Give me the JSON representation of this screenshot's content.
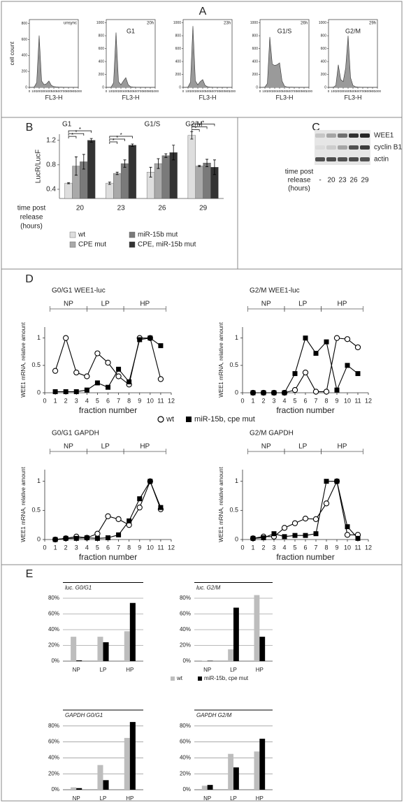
{
  "panel_labels": [
    "A",
    "B",
    "C",
    "D",
    "E"
  ],
  "blot": {
    "rows": [
      "WEE1",
      "cyclin B1",
      "actin"
    ],
    "xlabel": [
      "time post",
      "release",
      "(hours)"
    ],
    "lanes": [
      "-",
      "20",
      "23",
      "26",
      "29"
    ]
  },
  "chart_data": [
    {
      "type": "area",
      "annotation": "unsync",
      "ylabel": "cell count",
      "xlabel": "FL3-H",
      "color": "#9a9a9a",
      "x": [
        0,
        50,
        100,
        150,
        200,
        250,
        300,
        350,
        400,
        450,
        500,
        550,
        600,
        650,
        700,
        750,
        800,
        850,
        900,
        950,
        1000
      ],
      "values": [
        0,
        0,
        5,
        60,
        650,
        80,
        35,
        45,
        80,
        25,
        10,
        6,
        4,
        3,
        2,
        2,
        1,
        1,
        1,
        0,
        0
      ],
      "xlim": [
        0,
        1000
      ],
      "xticks": [
        0,
        100,
        200,
        300,
        400,
        500,
        600,
        700,
        800,
        900,
        1000
      ],
      "ylim": [
        0,
        850
      ],
      "yticks": [
        0,
        200,
        400,
        600,
        800
      ]
    },
    {
      "type": "area",
      "annotation": "20h",
      "subtitle": "G1",
      "xlabel": "FL3-H",
      "color": "#9a9a9a",
      "x": [
        0,
        50,
        100,
        150,
        200,
        250,
        300,
        350,
        400,
        450,
        500,
        550,
        600,
        650,
        700,
        750,
        800,
        850,
        900,
        950,
        1000
      ],
      "values": [
        0,
        0,
        5,
        70,
        850,
        90,
        40,
        100,
        150,
        40,
        10,
        5,
        3,
        2,
        2,
        1,
        1,
        1,
        0,
        0,
        0
      ],
      "xlim": [
        0,
        1000
      ],
      "xticks": [
        0,
        100,
        200,
        300,
        400,
        500,
        600,
        700,
        800,
        900,
        1000
      ],
      "ylim": [
        0,
        1050
      ],
      "yticks": [
        0,
        200,
        400,
        600,
        800,
        1000
      ]
    },
    {
      "type": "area",
      "annotation": "23h",
      "xlabel": "FL3-H",
      "color": "#9a9a9a",
      "x": [
        0,
        50,
        100,
        150,
        200,
        250,
        300,
        350,
        400,
        450,
        500,
        550,
        600,
        650,
        700,
        750,
        800,
        850,
        900,
        950,
        1000
      ],
      "values": [
        0,
        0,
        5,
        80,
        950,
        100,
        40,
        90,
        120,
        30,
        10,
        5,
        3,
        2,
        2,
        1,
        1,
        1,
        0,
        0,
        0
      ],
      "xlim": [
        0,
        1000
      ],
      "xticks": [
        0,
        100,
        200,
        300,
        400,
        500,
        600,
        700,
        800,
        900,
        1000
      ],
      "ylim": [
        0,
        1050
      ],
      "yticks": [
        0,
        200,
        400,
        600,
        800,
        1000
      ]
    },
    {
      "type": "area",
      "annotation": "26h",
      "subtitle": "G1/S",
      "xlabel": "FL3-H",
      "color": "#9a9a9a",
      "x": [
        0,
        50,
        100,
        150,
        200,
        250,
        300,
        350,
        400,
        450,
        500,
        550,
        600,
        650,
        700,
        750,
        800,
        850,
        900,
        950,
        1000
      ],
      "values": [
        0,
        0,
        5,
        60,
        780,
        360,
        340,
        350,
        380,
        100,
        20,
        8,
        4,
        3,
        2,
        2,
        1,
        1,
        0,
        0,
        0
      ],
      "xlim": [
        0,
        1000
      ],
      "xticks": [
        0,
        100,
        200,
        300,
        400,
        500,
        600,
        700,
        800,
        900,
        1000
      ],
      "ylim": [
        0,
        1050
      ],
      "yticks": [
        0,
        200,
        400,
        600,
        800,
        1000
      ]
    },
    {
      "type": "area",
      "annotation": "29h",
      "subtitle": "G2/M",
      "xlabel": "FL3-H",
      "color": "#9a9a9a",
      "x": [
        0,
        50,
        100,
        150,
        200,
        250,
        300,
        350,
        400,
        450,
        500,
        550,
        600,
        650,
        700,
        750,
        800,
        850,
        900,
        950,
        1000
      ],
      "values": [
        0,
        0,
        3,
        30,
        350,
        120,
        90,
        300,
        800,
        150,
        30,
        10,
        5,
        3,
        2,
        2,
        1,
        1,
        0,
        0,
        0
      ],
      "xlim": [
        0,
        1000
      ],
      "xticks": [
        0,
        100,
        200,
        300,
        400,
        500,
        600,
        700,
        800,
        900,
        1000
      ],
      "ylim": [
        0,
        1050
      ],
      "yticks": [
        0,
        200,
        400,
        600,
        800,
        1000
      ]
    },
    {
      "type": "bar",
      "ylabel": "LucR/LucF",
      "xlabel": [
        "time post",
        "release",
        "(hours)"
      ],
      "categories": [
        "20",
        "23",
        "26",
        "29"
      ],
      "phase_labels": [
        "G1",
        null,
        "G1/S",
        "G2/M"
      ],
      "significance": [
        "*",
        "*",
        null,
        "*"
      ],
      "ylim": [
        0.25,
        1.3
      ],
      "yticks": [
        0.4,
        0.8,
        1.2
      ],
      "series": [
        {
          "name": "wt",
          "color": "#dedede",
          "values": [
            0.5,
            0.5,
            0.68,
            1.28
          ],
          "errors": [
            0.01,
            0.02,
            0.08,
            0.06
          ]
        },
        {
          "name": "CPE mut",
          "color": "#a9a9a9",
          "values": [
            0.78,
            0.66,
            0.82,
            0.78
          ],
          "errors": [
            0.15,
            0.02,
            0.08,
            0.01
          ]
        },
        {
          "name": "miR-15b mut",
          "color": "#7a7a7a",
          "values": [
            0.85,
            0.82,
            0.95,
            0.83
          ],
          "errors": [
            0.12,
            0.06,
            0.03,
            0.06
          ]
        },
        {
          "name": "CPE, miR-15b mut",
          "color": "#333333",
          "values": [
            1.2,
            1.12,
            1.0,
            0.76
          ],
          "errors": [
            0.03,
            0.02,
            0.12,
            0.12
          ]
        }
      ]
    },
    {
      "type": "line",
      "title": "G0/G1 WEE1-luc",
      "xlabel": "fraction number",
      "ylabel": "WEE1 mRNA, relative amount",
      "regions": [
        {
          "label": "NP",
          "range": [
            0.5,
            4
          ]
        },
        {
          "label": "LP",
          "range": [
            4,
            7.5
          ]
        },
        {
          "label": "HP",
          "range": [
            7.5,
            11.5
          ]
        }
      ],
      "x": [
        1,
        2,
        3,
        4,
        5,
        6,
        7,
        8,
        9,
        10,
        11
      ],
      "xlim": [
        0,
        12
      ],
      "xticks": [
        0,
        1,
        2,
        3,
        4,
        5,
        6,
        7,
        8,
        9,
        10,
        11,
        12
      ],
      "ylim": [
        0,
        1.2
      ],
      "yticks": [
        0,
        0.5,
        1
      ],
      "series": [
        {
          "name": "wt",
          "color": "#000000",
          "marker": "open-circle",
          "values": [
            0.4,
            1.0,
            0.37,
            0.3,
            0.72,
            0.55,
            0.3,
            0.15,
            1.0,
            1.0,
            0.25
          ]
        },
        {
          "name": "miR-15b, cpe mut",
          "color": "#000000",
          "marker": "filled-square",
          "values": [
            0.02,
            0.02,
            0.02,
            0.05,
            0.18,
            0.1,
            0.43,
            0.2,
            0.97,
            1.0,
            0.86
          ]
        }
      ]
    },
    {
      "type": "line",
      "title": "G2/M WEE1-luc",
      "xlabel": "fraction number",
      "ylabel": "WEE1 mRNA, relative amount",
      "regions": [
        {
          "label": "NP",
          "range": [
            0.5,
            4
          ]
        },
        {
          "label": "LP",
          "range": [
            4,
            7.5
          ]
        },
        {
          "label": "HP",
          "range": [
            7.5,
            11.5
          ]
        }
      ],
      "x": [
        1,
        2,
        3,
        4,
        5,
        6,
        7,
        8,
        9,
        10,
        11
      ],
      "xlim": [
        0,
        12
      ],
      "xticks": [
        0,
        1,
        2,
        3,
        4,
        5,
        6,
        7,
        8,
        9,
        10,
        11,
        12
      ],
      "ylim": [
        0,
        1.2
      ],
      "yticks": [
        0,
        0.5,
        1
      ],
      "series": [
        {
          "name": "wt",
          "color": "#000000",
          "marker": "open-circle",
          "values": [
            0,
            0,
            0,
            0,
            0.05,
            0.37,
            0.02,
            0.02,
            1.0,
            0.98,
            0.83
          ]
        },
        {
          "name": "miR-15b, cpe mut",
          "color": "#000000",
          "marker": "filled-square",
          "values": [
            0,
            0,
            0,
            0,
            0.35,
            1.0,
            0.72,
            0.93,
            0.05,
            0.5,
            0.35
          ]
        }
      ]
    },
    {
      "type": "line",
      "title": "G0/G1 GAPDH",
      "xlabel": "fraction number",
      "ylabel": "WEE1 mRNA, relative amount",
      "regions": [
        {
          "label": "NP",
          "range": [
            0.5,
            4
          ]
        },
        {
          "label": "LP",
          "range": [
            4,
            7.5
          ]
        },
        {
          "label": "HP",
          "range": [
            7.5,
            11.5
          ]
        }
      ],
      "x": [
        1,
        2,
        3,
        4,
        5,
        6,
        7,
        8,
        9,
        10,
        11
      ],
      "xlim": [
        0,
        12
      ],
      "xticks": [
        0,
        1,
        2,
        3,
        4,
        5,
        6,
        7,
        8,
        9,
        10,
        11,
        12
      ],
      "ylim": [
        0,
        1.2
      ],
      "yticks": [
        0,
        0.5,
        1
      ],
      "series": [
        {
          "name": "wt",
          "color": "#000000",
          "marker": "open-circle",
          "values": [
            0,
            0.02,
            0.05,
            0.03,
            0.1,
            0.4,
            0.35,
            0.25,
            0.55,
            1.0,
            0.52
          ]
        },
        {
          "name": "miR-15b, cpe mut",
          "color": "#000000",
          "marker": "filled-square",
          "values": [
            0,
            0.02,
            0.02,
            0.03,
            0.02,
            0.03,
            0.08,
            0.32,
            0.7,
            1.0,
            0.55
          ]
        }
      ]
    },
    {
      "type": "line",
      "title": "G2/M GAPDH",
      "xlabel": "fraction number",
      "ylabel": "WEE1 mRNA, relative amount",
      "regions": [
        {
          "label": "NP",
          "range": [
            0.5,
            4
          ]
        },
        {
          "label": "LP",
          "range": [
            4,
            7.5
          ]
        },
        {
          "label": "HP",
          "range": [
            7.5,
            11.5
          ]
        }
      ],
      "x": [
        1,
        2,
        3,
        4,
        5,
        6,
        7,
        8,
        9,
        10,
        11
      ],
      "xlim": [
        0,
        12
      ],
      "xticks": [
        0,
        1,
        2,
        3,
        4,
        5,
        6,
        7,
        8,
        9,
        10,
        11,
        12
      ],
      "ylim": [
        0,
        1.2
      ],
      "yticks": [
        0,
        0.5,
        1
      ],
      "series": [
        {
          "name": "wt",
          "color": "#000000",
          "marker": "open-circle",
          "values": [
            0.02,
            0.05,
            0.05,
            0.2,
            0.28,
            0.36,
            0.35,
            0.62,
            1.0,
            0.08,
            0.08
          ]
        },
        {
          "name": "miR-15b, cpe mut",
          "color": "#000000",
          "marker": "filled-square",
          "values": [
            0.02,
            0.03,
            0.1,
            0.05,
            0.07,
            0.07,
            0.1,
            1.0,
            1.0,
            0.22,
            0.02
          ]
        }
      ]
    },
    {
      "type": "bar",
      "title": "luc. G0/G1",
      "categories": [
        "NP",
        "LP",
        "HP"
      ],
      "grid": true,
      "ylim": [
        0,
        100
      ],
      "yticks": [
        {
          "value": 0,
          "label": "0%"
        },
        {
          "value": 20,
          "label": "20%"
        },
        {
          "value": 40,
          "label": "40%"
        },
        {
          "value": 60,
          "label": "60%"
        },
        {
          "value": 80,
          "label": "80%"
        }
      ],
      "series": [
        {
          "name": "wt",
          "color": "#bdbdbd",
          "values": [
            31,
            31,
            38
          ]
        },
        {
          "name": "miR-15b, cpe mut",
          "color": "#000000",
          "values": [
            1,
            24,
            74
          ]
        }
      ]
    },
    {
      "type": "bar",
      "title": "luc. G2/M",
      "categories": [
        "NP",
        "LP",
        "HP"
      ],
      "grid": true,
      "ylim": [
        0,
        100
      ],
      "yticks": [
        {
          "value": 0,
          "label": "0%"
        },
        {
          "value": 20,
          "label": "20%"
        },
        {
          "value": 40,
          "label": "40%"
        },
        {
          "value": 60,
          "label": "60%"
        },
        {
          "value": 80,
          "label": "80%"
        }
      ],
      "series": [
        {
          "name": "wt",
          "color": "#bdbdbd",
          "values": [
            0.5,
            15,
            84
          ]
        },
        {
          "name": "miR-15b, cpe mut",
          "color": "#000000",
          "values": [
            0.5,
            68,
            31
          ]
        }
      ]
    },
    {
      "type": "bar",
      "title": "GAPDH G0/G1",
      "categories": [
        "NP",
        "LP",
        "HP"
      ],
      "grid": true,
      "ylim": [
        0,
        100
      ],
      "yticks": [
        {
          "value": 0,
          "label": "0%"
        },
        {
          "value": 20,
          "label": "20%"
        },
        {
          "value": 40,
          "label": "40%"
        },
        {
          "value": 60,
          "label": "60%"
        },
        {
          "value": 80,
          "label": "80%"
        }
      ],
      "series": [
        {
          "name": "wt",
          "color": "#bdbdbd",
          "values": [
            3,
            31,
            65
          ]
        },
        {
          "name": "miR-15b, cpe mut",
          "color": "#000000",
          "values": [
            2,
            12,
            85
          ]
        }
      ]
    },
    {
      "type": "bar",
      "title": "GAPDH G2/M",
      "categories": [
        "NP",
        "LP",
        "HP"
      ],
      "grid": true,
      "ylim": [
        0,
        100
      ],
      "yticks": [
        {
          "value": 0,
          "label": "0%"
        },
        {
          "value": 20,
          "label": "20%"
        },
        {
          "value": 40,
          "label": "40%"
        },
        {
          "value": 60,
          "label": "60%"
        },
        {
          "value": 80,
          "label": "80%"
        }
      ],
      "series": [
        {
          "name": "wt",
          "color": "#bdbdbd",
          "values": [
            5,
            45,
            48
          ]
        },
        {
          "name": "miR-15b, cpe mut",
          "color": "#000000",
          "values": [
            6,
            28,
            64
          ]
        }
      ]
    }
  ]
}
